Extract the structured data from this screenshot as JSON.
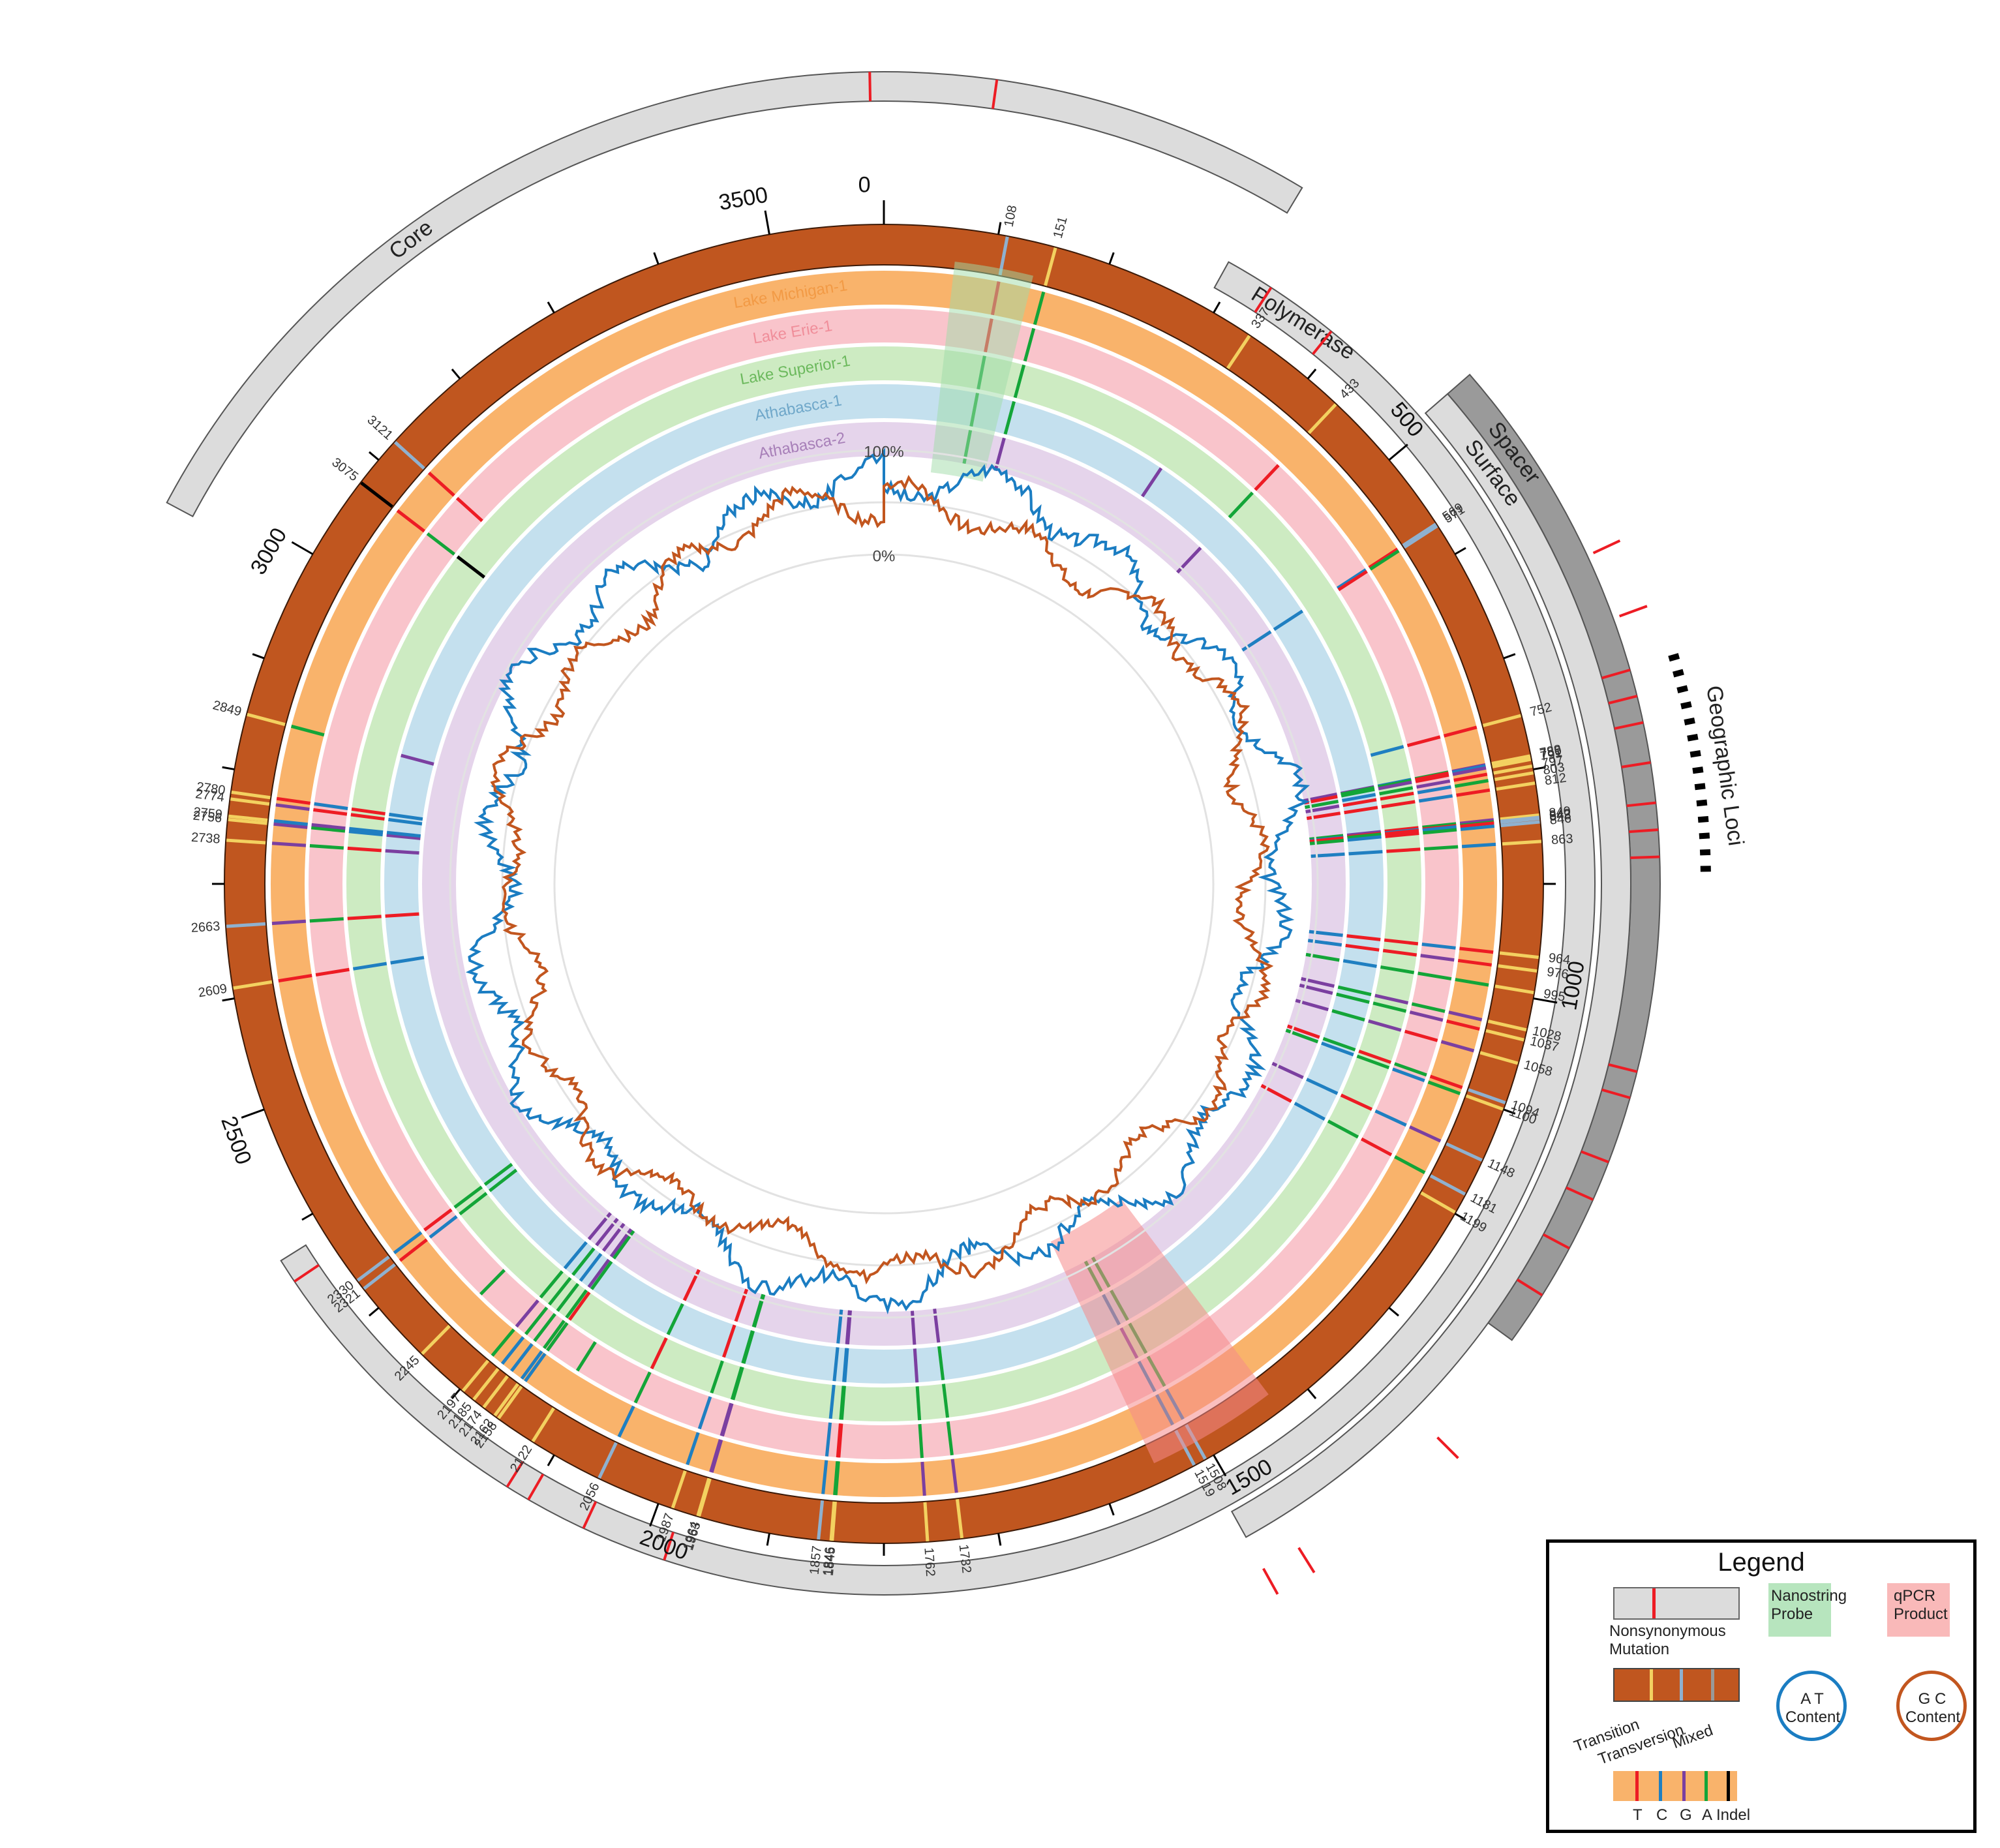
{
  "colors": {
    "genome": "#C0561F",
    "gene_bar": "#DCDCDC",
    "gene_bar_dark": "#9A9A9A",
    "transition": "#F3D160",
    "transversion": "#8FB1CF",
    "mixed": "#999999",
    "T": "#ED1C24",
    "C": "#1F7FC1",
    "G": "#7B3FA0",
    "A": "#13A538",
    "Indel": "#000000",
    "at_line": "#1B7DC2",
    "gc_line": "#C2561F",
    "nanostring": "#9FDCA8",
    "qpcr": "#F58A8A"
  },
  "genome_length": 3600,
  "genome_ticks": [
    "0",
    "500",
    "1000",
    "1500",
    "2000",
    "2500",
    "3000",
    "3500"
  ],
  "genes": [
    {
      "name": "Polymerase",
      "label": "Polymerase"
    },
    {
      "name": "Core",
      "label": "Core"
    },
    {
      "name": "Spacer",
      "label": "Spacer"
    },
    {
      "name": "Surface",
      "label": "Surface"
    }
  ],
  "geographic_loci_label": "Geographic Loci",
  "strains": [
    {
      "name": "Lake Michigan-1",
      "color": "#F9B36B",
      "text_color": "#F29A45"
    },
    {
      "name": "Lake Erie-1",
      "color": "#F9C4CB",
      "text_color": "#F08E9A"
    },
    {
      "name": "Lake Superior-1",
      "color": "#CDEBC2",
      "text_color": "#6CB95D"
    },
    {
      "name": "Athabasca-1",
      "color": "#C4E0EE",
      "text_color": "#6FA7C9"
    },
    {
      "name": "Athabasca-2",
      "color": "#E5D4EB",
      "text_color": "#A77FB8"
    }
  ],
  "mutation_sites": [
    {
      "pos": 108,
      "label": "108",
      "type": "transversion",
      "bases": [
        "T",
        "T",
        "A",
        "A",
        "A"
      ]
    },
    {
      "pos": 151,
      "label": "151",
      "type": "transition",
      "bases": [
        "A",
        "A",
        "A",
        "A",
        "G"
      ]
    },
    {
      "pos": 337,
      "label": "337",
      "type": "transition",
      "bases": [
        "",
        "",
        "",
        "G",
        ""
      ]
    },
    {
      "pos": 433,
      "label": "433",
      "type": "transition",
      "bases": [
        "",
        "T",
        "A",
        "",
        "G"
      ]
    },
    {
      "pos": 569,
      "label": "569",
      "type": "transversion",
      "bases": [
        "T",
        "C",
        "",
        "C",
        "C"
      ]
    },
    {
      "pos": 571,
      "label": "571",
      "type": "transversion",
      "bases": [
        "A",
        "T",
        "",
        "",
        ""
      ]
    },
    {
      "pos": 752,
      "label": "752",
      "type": "transition",
      "bases": [
        "T",
        "T",
        "C",
        "",
        ""
      ]
    },
    {
      "pos": 788,
      "label": "788",
      "type": "transition",
      "bases": [
        "G",
        "A",
        "C",
        "G",
        "G"
      ]
    },
    {
      "pos": 789,
      "label": "789",
      "type": "transition",
      "bases": [
        "C",
        "T",
        "A",
        "A",
        "G"
      ]
    },
    {
      "pos": 791,
      "label": "791",
      "type": "transition",
      "bases": [
        "G",
        "T",
        "G",
        "A",
        "T"
      ]
    },
    {
      "pos": 797,
      "label": "797",
      "type": "transition",
      "bases": [
        "T",
        "G",
        "A",
        "C",
        "A"
      ]
    },
    {
      "pos": 803,
      "label": "803",
      "type": "transition",
      "bases": [
        "A",
        "C",
        "T",
        "T",
        "G"
      ]
    },
    {
      "pos": 812,
      "label": "812",
      "type": "transition",
      "bases": [
        "T",
        "C",
        "T",
        "T",
        "T"
      ]
    },
    {
      "pos": 840,
      "label": "840",
      "type": "transition",
      "bases": [
        "G",
        "A",
        "T",
        "G",
        "A"
      ]
    },
    {
      "pos": 842,
      "label": "842",
      "type": "transversion",
      "bases": [
        "A",
        "T",
        "C",
        "T",
        "C"
      ]
    },
    {
      "pos": 843,
      "label": "843",
      "type": "transversion",
      "bases": [
        "T",
        "C",
        "T",
        "A",
        "T"
      ]
    },
    {
      "pos": 846,
      "label": "846",
      "type": "transversion",
      "bases": [
        "C",
        "A",
        "T",
        "C",
        "A"
      ]
    },
    {
      "pos": 863,
      "label": "863",
      "type": "transition",
      "bases": [
        "C",
        "A",
        "T",
        "C",
        "C"
      ]
    },
    {
      "pos": 964,
      "label": "964",
      "type": "transition",
      "bases": [
        "T",
        "C",
        "T",
        "T",
        "C"
      ]
    },
    {
      "pos": 976,
      "label": "976",
      "type": "transition",
      "bases": [
        "T",
        "G",
        "T",
        "T",
        "C"
      ]
    },
    {
      "pos": 995,
      "label": "995",
      "type": "transition",
      "bases": [
        "A",
        "A",
        "A",
        "C",
        "A"
      ]
    },
    {
      "pos": 1028,
      "label": "1028",
      "type": "transition",
      "bases": [
        "G",
        "A",
        "G",
        "A",
        "G"
      ]
    },
    {
      "pos": 1037,
      "label": "1037",
      "type": "transition",
      "bases": [
        "T",
        "G",
        "A",
        "A",
        "G"
      ]
    },
    {
      "pos": 1058,
      "label": "1058",
      "type": "transition",
      "bases": [
        "G",
        "T",
        "G",
        "A",
        "G"
      ]
    },
    {
      "pos": 1094,
      "label": "1094",
      "type": "transversion",
      "bases": [
        "T",
        "A",
        "T",
        "A",
        "T"
      ]
    },
    {
      "pos": 1100,
      "label": "1100",
      "type": "transition",
      "bases": [
        "A",
        "C",
        "A",
        "C",
        "A"
      ]
    },
    {
      "pos": 1148,
      "label": "1148",
      "type": "transversion",
      "bases": [
        "G",
        "C",
        "T",
        "C",
        "G"
      ]
    },
    {
      "pos": 1181,
      "label": "1181",
      "type": "transversion",
      "bases": [
        "A",
        "T",
        "A",
        "C",
        "T"
      ]
    },
    {
      "pos": 1199,
      "label": "1199",
      "type": "transition",
      "bases": [
        "",
        "",
        "",
        "",
        ""
      ]
    },
    {
      "pos": 1508,
      "label": "1508",
      "type": "transversion",
      "bases": [
        "C",
        "A",
        "A",
        "A",
        "A"
      ]
    },
    {
      "pos": 1519,
      "label": "1519",
      "type": "transversion",
      "bases": [
        "C",
        "C",
        "G",
        "C",
        "A"
      ]
    },
    {
      "pos": 1732,
      "label": "1732",
      "type": "transition",
      "bases": [
        "G",
        "A",
        "A",
        "A",
        "G"
      ]
    },
    {
      "pos": 1762,
      "label": "1762",
      "type": "transition",
      "bases": [
        "G",
        "A",
        "A",
        "G",
        "G"
      ]
    },
    {
      "pos": 1845,
      "label": "1845",
      "type": "transition",
      "bases": [
        "A",
        "T",
        "A",
        "C",
        "G"
      ]
    },
    {
      "pos": 1846,
      "label": "1846",
      "type": "transition",
      "bases": [
        "A",
        "T",
        "A",
        "C",
        "G"
      ]
    },
    {
      "pos": 1857,
      "label": "1857",
      "type": "transversion",
      "bases": [
        "C",
        "C",
        "C",
        "C",
        "C"
      ]
    },
    {
      "pos": 1963,
      "label": "1963",
      "type": "transition",
      "bases": [
        "G",
        "G",
        "A",
        "A",
        "A"
      ]
    },
    {
      "pos": 1964,
      "label": "1964",
      "type": "transition",
      "bases": [
        "G",
        "G",
        "A",
        "A",
        "A"
      ]
    },
    {
      "pos": 1987,
      "label": "1987",
      "type": "transition",
      "bases": [
        "C",
        "C",
        "A",
        "T",
        "T"
      ]
    },
    {
      "pos": 2056,
      "label": "2056",
      "type": "transversion",
      "bases": [
        "C",
        "A",
        "T",
        "A",
        "T"
      ]
    },
    {
      "pos": 2122,
      "label": "2122",
      "type": "transition",
      "bases": [
        "",
        "A",
        "",
        "",
        ""
      ]
    },
    {
      "pos": 2158,
      "label": "2158",
      "type": "transition",
      "bases": [
        "C",
        "A",
        "T",
        "A",
        "A"
      ]
    },
    {
      "pos": 2162,
      "label": "2162",
      "type": "transition",
      "bases": [
        "C",
        "A",
        "A",
        "G",
        "G"
      ]
    },
    {
      "pos": 2174,
      "label": "2174",
      "type": "transition",
      "bases": [
        "C",
        "A",
        "A",
        "C",
        "G"
      ]
    },
    {
      "pos": 2185,
      "label": "2185",
      "type": "transition",
      "bases": [
        "C",
        "A",
        "A",
        "A",
        "G"
      ]
    },
    {
      "pos": 2197,
      "label": "2197",
      "type": "transition",
      "bases": [
        "A",
        "G",
        "A",
        "C",
        "G"
      ]
    },
    {
      "pos": 2245,
      "label": "2245",
      "type": "transition",
      "bases": [
        "",
        "A",
        "",
        "",
        ""
      ]
    },
    {
      "pos": 2321,
      "label": "2321",
      "type": "transversion",
      "bases": [
        "T",
        "C",
        "A",
        "A",
        ""
      ]
    },
    {
      "pos": 2330,
      "label": "2330",
      "type": "transversion",
      "bases": [
        "C",
        "T",
        "A",
        "A",
        ""
      ]
    },
    {
      "pos": 2609,
      "label": "2609",
      "type": "transition",
      "bases": [
        "T",
        "T",
        "C",
        "C",
        ""
      ]
    },
    {
      "pos": 2663,
      "label": "2663",
      "type": "transversion",
      "bases": [
        "G",
        "A",
        "T",
        "T",
        ""
      ]
    },
    {
      "pos": 2738,
      "label": "2738",
      "type": "transition",
      "bases": [
        "G",
        "A",
        "T",
        "G",
        ""
      ]
    },
    {
      "pos": 2756,
      "label": "2756",
      "type": "transition",
      "bases": [
        "G",
        "A",
        "C",
        "G",
        ""
      ]
    },
    {
      "pos": 2759,
      "label": "2759",
      "type": "transition",
      "bases": [
        "C",
        "G",
        "C",
        "C",
        ""
      ]
    },
    {
      "pos": 2774,
      "label": "2774",
      "type": "transition",
      "bases": [
        "G",
        "T",
        "T",
        "C",
        ""
      ]
    },
    {
      "pos": 2780,
      "label": "2780",
      "type": "transition",
      "bases": [
        "T",
        "C",
        "T",
        "C",
        ""
      ]
    },
    {
      "pos": 2849,
      "label": "2849",
      "type": "transition",
      "bases": [
        "A",
        "",
        "",
        "G",
        ""
      ]
    },
    {
      "pos": 3075,
      "label": "3075",
      "type": "indel",
      "bases": [
        "T",
        "A",
        "Indel",
        "",
        ""
      ]
    },
    {
      "pos": 3121,
      "label": "3121",
      "type": "transversion",
      "bases": [
        "T",
        "T",
        "",
        "",
        ""
      ]
    }
  ],
  "content_plot": {
    "max_label": "100%",
    "min_label": "0%"
  },
  "legend": {
    "title": "Legend",
    "nonsyn_label": "Nonsynonymous Mutation",
    "nanostring_label": "Nanostring Probe",
    "qpcr_label": "qPCR Product",
    "transition_label": "Transition",
    "transversion_label": "Transversion",
    "mixed_label": "Mixed",
    "at_label": "A T Content",
    "gc_label": "G C Content",
    "bases": [
      "T",
      "C",
      "G",
      "A",
      "Indel"
    ]
  }
}
